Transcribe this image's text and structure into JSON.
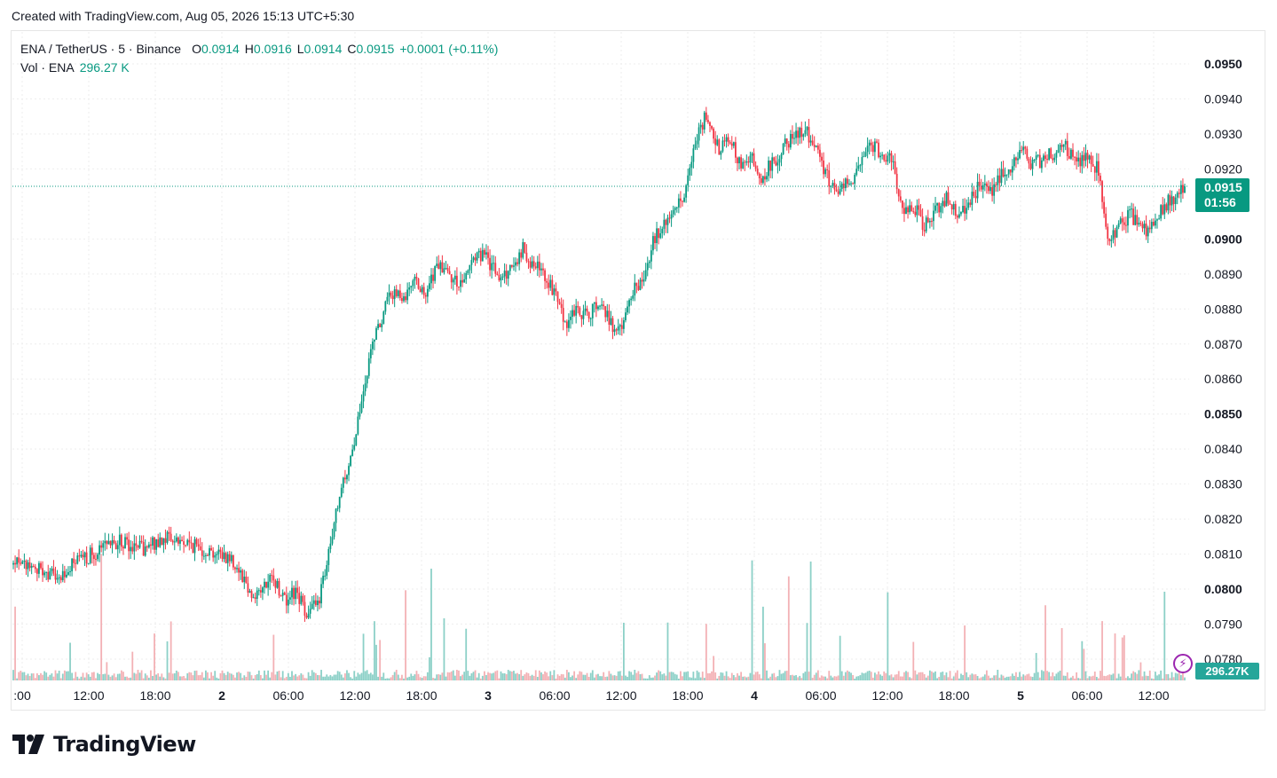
{
  "caption": "Created with TradingView.com, Aug 05, 2026 15:13 UTC+5:30",
  "legend": {
    "symbol": "ENA / TetherUS · 5 · Binance",
    "open_label": "O",
    "open": "0.0914",
    "high_label": "H",
    "high": "0.0916",
    "low_label": "L",
    "low": "0.0914",
    "close_label": "C",
    "close": "0.0915",
    "change": "+0.0001 (+0.11%)",
    "volume_label": "Vol · ENA",
    "volume": "296.27 K"
  },
  "last_price": {
    "price": "0.0915",
    "countdown": "01:56"
  },
  "volume_badge": "296.27K",
  "brand": "TradingView",
  "colors": {
    "up": "#089981",
    "down": "#f23645",
    "vol_up": "#7fcbc1",
    "vol_down": "#f2a9ad",
    "accent": "#9c27b0"
  },
  "chart_data": {
    "type": "candlestick",
    "interval": "5m",
    "price_range": [
      0.0775,
      0.0955
    ],
    "price_ticks": [
      "0.0950",
      "0.0940",
      "0.0930",
      "0.0920",
      "0.0900",
      "0.0890",
      "0.0880",
      "0.0870",
      "0.0860",
      "0.0850",
      "0.0840",
      "0.0830",
      "0.0820",
      "0.0810",
      "0.0800",
      "0.0790",
      "0.0780"
    ],
    "bold_price_ticks": [
      "0.0950",
      "0.0900",
      "0.0850",
      "0.0800"
    ],
    "time_ticks": [
      ":00",
      "12:00",
      "18:00",
      "2",
      "06:00",
      "12:00",
      "18:00",
      "3",
      "06:00",
      "12:00",
      "18:00",
      "4",
      "06:00",
      "12:00",
      "18:00",
      "5",
      "06:00",
      "12:00"
    ],
    "bold_time_ticks": [
      "2",
      "3",
      "4",
      "5"
    ],
    "path_keypoints": [
      [
        0,
        0.0807
      ],
      [
        4,
        0.0806
      ],
      [
        8,
        0.0803
      ],
      [
        12,
        0.0808
      ],
      [
        16,
        0.0811
      ],
      [
        20,
        0.0814
      ],
      [
        24,
        0.0811
      ],
      [
        28,
        0.0815
      ],
      [
        32,
        0.0813
      ],
      [
        36,
        0.0811
      ],
      [
        40,
        0.0809
      ],
      [
        42,
        0.0805
      ],
      [
        44,
        0.0798
      ],
      [
        46,
        0.08
      ],
      [
        48,
        0.0803
      ],
      [
        50,
        0.0797
      ],
      [
        52,
        0.0799
      ],
      [
        54,
        0.0794
      ],
      [
        56,
        0.0795
      ],
      [
        58,
        0.0808
      ],
      [
        60,
        0.0825
      ],
      [
        62,
        0.0837
      ],
      [
        64,
        0.085
      ],
      [
        66,
        0.0868
      ],
      [
        68,
        0.0878
      ],
      [
        70,
        0.0885
      ],
      [
        72,
        0.0882
      ],
      [
        74,
        0.089
      ],
      [
        76,
        0.0883
      ],
      [
        78,
        0.0892
      ],
      [
        80,
        0.089
      ],
      [
        82,
        0.0887
      ],
      [
        84,
        0.0892
      ],
      [
        86,
        0.0896
      ],
      [
        88,
        0.0893
      ],
      [
        90,
        0.0888
      ],
      [
        92,
        0.0893
      ],
      [
        94,
        0.0897
      ],
      [
        96,
        0.0892
      ],
      [
        98,
        0.089
      ],
      [
        100,
        0.0883
      ],
      [
        102,
        0.0876
      ],
      [
        104,
        0.088
      ],
      [
        106,
        0.0878
      ],
      [
        108,
        0.0883
      ],
      [
        110,
        0.0876
      ],
      [
        112,
        0.0873
      ],
      [
        114,
        0.0885
      ],
      [
        116,
        0.0888
      ],
      [
        118,
        0.09
      ],
      [
        120,
        0.0904
      ],
      [
        122,
        0.0908
      ],
      [
        124,
        0.0914
      ],
      [
        126,
        0.093
      ],
      [
        128,
        0.0936
      ],
      [
        130,
        0.0926
      ],
      [
        132,
        0.0928
      ],
      [
        134,
        0.0922
      ],
      [
        136,
        0.0924
      ],
      [
        138,
        0.0917
      ],
      [
        140,
        0.0922
      ],
      [
        142,
        0.0926
      ],
      [
        144,
        0.0929
      ],
      [
        146,
        0.0931
      ],
      [
        148,
        0.0925
      ],
      [
        150,
        0.0918
      ],
      [
        152,
        0.0914
      ],
      [
        154,
        0.0916
      ],
      [
        156,
        0.0919
      ],
      [
        158,
        0.0928
      ],
      [
        160,
        0.0924
      ],
      [
        162,
        0.0923
      ],
      [
        164,
        0.0908
      ],
      [
        166,
        0.0909
      ],
      [
        168,
        0.0904
      ],
      [
        170,
        0.0908
      ],
      [
        172,
        0.0912
      ],
      [
        174,
        0.0907
      ],
      [
        176,
        0.091
      ],
      [
        178,
        0.0915
      ],
      [
        180,
        0.0913
      ],
      [
        182,
        0.0918
      ],
      [
        184,
        0.092
      ],
      [
        186,
        0.0925
      ],
      [
        188,
        0.0921
      ],
      [
        190,
        0.0923
      ],
      [
        192,
        0.0925
      ],
      [
        194,
        0.0927
      ],
      [
        196,
        0.0921
      ],
      [
        198,
        0.0924
      ],
      [
        200,
        0.092
      ],
      [
        202,
        0.09
      ],
      [
        204,
        0.0904
      ],
      [
        206,
        0.0907
      ],
      [
        208,
        0.0902
      ],
      [
        210,
        0.0904
      ],
      [
        212,
        0.0909
      ],
      [
        214,
        0.0912
      ],
      [
        216,
        0.0915
      ]
    ],
    "volume_profile": "baseline low with spikes"
  }
}
